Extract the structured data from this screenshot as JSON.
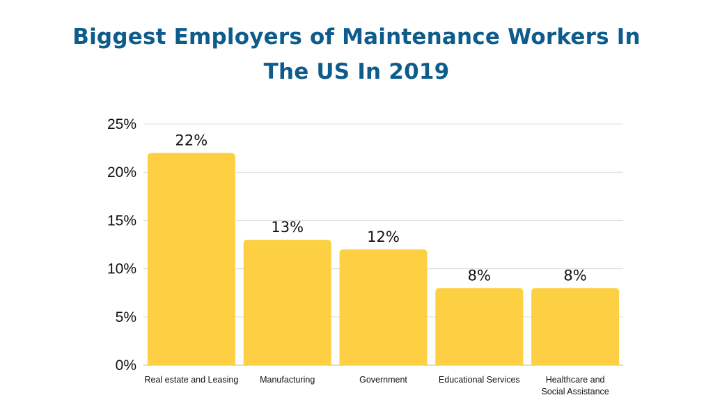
{
  "chart_data": {
    "type": "bar",
    "title_lines": [
      "Biggest Employers of Maintenance Workers In",
      "The US In 2019"
    ],
    "categories": [
      [
        "Real estate and Leasing"
      ],
      [
        "Manufacturing"
      ],
      [
        "Government"
      ],
      [
        "Educational Services"
      ],
      [
        "Healthcare and",
        "Social Assistance"
      ]
    ],
    "values": [
      22,
      13,
      12,
      8,
      8
    ],
    "data_labels": [
      "22%",
      "13%",
      "12%",
      "8%",
      "8%"
    ],
    "yticks": [
      0,
      5,
      10,
      15,
      20,
      25
    ],
    "ytick_labels": [
      "0%",
      "5%",
      "10%",
      "15%",
      "20%",
      "25%"
    ],
    "ylim": [
      0,
      25
    ],
    "grid": true,
    "legend": "none",
    "xlabel": "",
    "ylabel": "",
    "colors": {
      "bar": "#fdd044",
      "title": "#0e5c8c"
    }
  }
}
